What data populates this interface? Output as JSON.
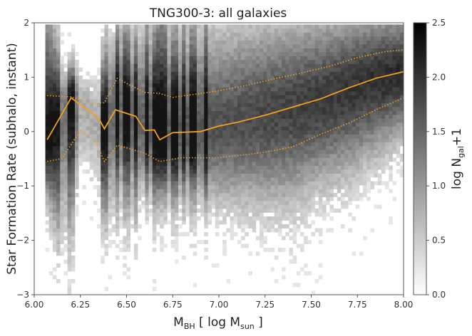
{
  "chart_data": {
    "type": "heatmap",
    "title": "TNG300-3: all galaxies",
    "xlabel": {
      "base": "M",
      "sub": "BH",
      "rest_open": " [ log M",
      "sub2": "sun",
      "rest_close": " ]"
    },
    "ylabel": "Star Formation Rate (subhalo, instant)",
    "colorbar_label": {
      "base": "log N",
      "sub": "gal",
      "rest": "+1"
    },
    "xlim": [
      6.0,
      8.0
    ],
    "ylim": [
      -3,
      2
    ],
    "color_range": [
      0.0,
      2.5
    ],
    "xticks": [
      "6.00",
      "6.25",
      "6.50",
      "6.75",
      "7.00",
      "7.25",
      "7.50",
      "7.75",
      "8.00"
    ],
    "yticks": [
      "−3",
      "−2",
      "−1",
      "0",
      "1",
      "2"
    ],
    "cbar_ticks": [
      "0.0",
      "0.5",
      "1.0",
      "1.5",
      "2.0",
      "2.5"
    ],
    "median_color": "#f0a020",
    "median_line": [
      [
        6.07,
        -0.15
      ],
      [
        6.2,
        0.62
      ],
      [
        6.35,
        0.24
      ],
      [
        6.38,
        0.05
      ],
      [
        6.44,
        0.4
      ],
      [
        6.55,
        0.28
      ],
      [
        6.6,
        0.02
      ],
      [
        6.65,
        0.03
      ],
      [
        6.68,
        -0.15
      ],
      [
        6.75,
        -0.02
      ],
      [
        6.9,
        0.0
      ],
      [
        7.0,
        0.1
      ],
      [
        7.1,
        0.17
      ],
      [
        7.25,
        0.3
      ],
      [
        7.4,
        0.45
      ],
      [
        7.55,
        0.6
      ],
      [
        7.7,
        0.8
      ],
      [
        7.85,
        0.98
      ],
      [
        8.0,
        1.1
      ]
    ],
    "upper_band": [
      [
        6.07,
        0.66
      ],
      [
        6.2,
        0.64
      ],
      [
        6.3,
        0.52
      ],
      [
        6.38,
        0.53
      ],
      [
        6.45,
        0.98
      ],
      [
        6.52,
        0.85
      ],
      [
        6.6,
        0.72
      ],
      [
        6.68,
        0.7
      ],
      [
        6.75,
        0.63
      ],
      [
        6.9,
        0.7
      ],
      [
        7.0,
        0.75
      ],
      [
        7.15,
        0.85
      ],
      [
        7.3,
        0.97
      ],
      [
        7.45,
        1.08
      ],
      [
        7.6,
        1.2
      ],
      [
        7.75,
        1.36
      ],
      [
        7.9,
        1.47
      ],
      [
        8.0,
        1.5
      ]
    ],
    "lower_band": [
      [
        6.07,
        -0.55
      ],
      [
        6.15,
        -0.5
      ],
      [
        6.25,
        0.02
      ],
      [
        6.33,
        -0.18
      ],
      [
        6.38,
        -0.55
      ],
      [
        6.45,
        -0.25
      ],
      [
        6.6,
        -0.4
      ],
      [
        6.68,
        -0.55
      ],
      [
        6.8,
        -0.48
      ],
      [
        7.0,
        -0.48
      ],
      [
        7.15,
        -0.42
      ],
      [
        7.25,
        -0.38
      ],
      [
        7.4,
        -0.28
      ],
      [
        7.55,
        -0.05
      ],
      [
        7.7,
        0.15
      ],
      [
        7.85,
        0.4
      ],
      [
        8.0,
        0.62
      ]
    ]
  }
}
